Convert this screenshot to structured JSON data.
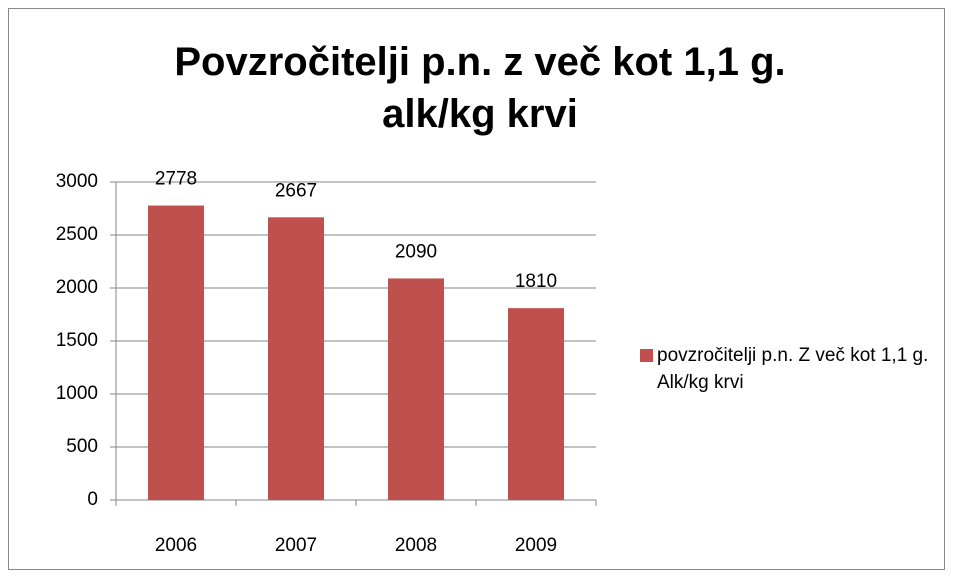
{
  "chart_data": {
    "type": "bar",
    "title": "Povzročitelji p.n. z več kot 1,1 g. alk/kg krvi",
    "categories": [
      "2006",
      "2007",
      "2008",
      "2009"
    ],
    "series": [
      {
        "name": "povzročitelji p.n. Z več kot 1,1 g. Alk/kg krvi",
        "color": "#c0504d",
        "values": [
          2778,
          2667,
          2090,
          1810
        ]
      }
    ],
    "ylim": [
      0,
      3000
    ],
    "yticks": [
      0,
      500,
      1000,
      1500,
      2000,
      2500,
      3000
    ],
    "grid": true,
    "legend": "right"
  }
}
